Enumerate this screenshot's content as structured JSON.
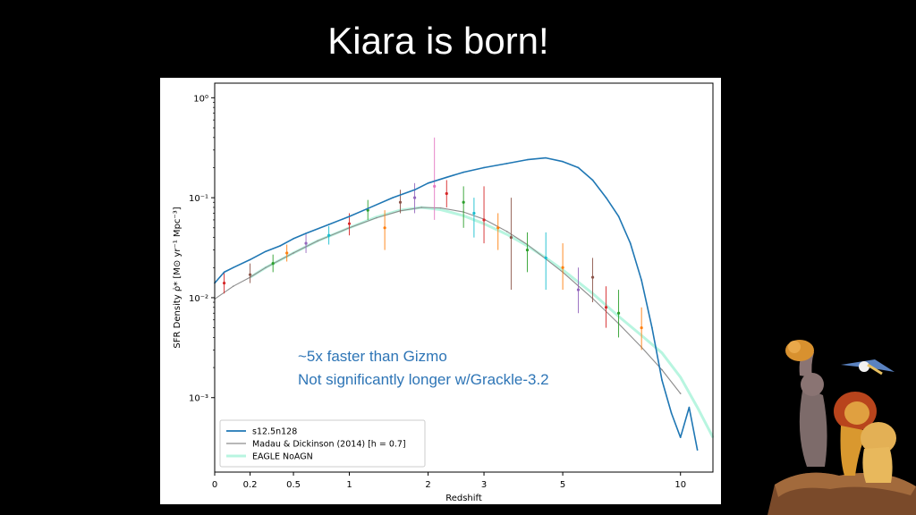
{
  "slide": {
    "title": "Kiara is born!"
  },
  "annotation": {
    "line1": "~5x faster than Gizmo",
    "line2": "Not significantly longer w/Grackle-3.2"
  },
  "colors": {
    "sim": "#1f77b4",
    "madau": "#8c8c8c",
    "eagle": "#b8f5e0",
    "annotation": "#2e75b6"
  },
  "chart_data": {
    "type": "line",
    "xlabel": "Redshift",
    "ylabel": "SFR Density ρ̇* [M⊙ yr⁻¹ Mpc⁻³]",
    "x_scale": "log(1+z)",
    "y_scale": "log",
    "xlim": [
      0,
      12
    ],
    "ylim": [
      0.00018,
      1.4
    ],
    "x_ticks": [
      0,
      0.2,
      0.5,
      1,
      2,
      3,
      5,
      10
    ],
    "x_tick_labels": [
      "0",
      "0.2",
      "0.5",
      "1",
      "2",
      "3",
      "5",
      "10"
    ],
    "y_ticks": [
      0.001,
      0.01,
      0.1,
      1
    ],
    "y_tick_labels": [
      "10⁻³",
      "10⁻²",
      "10⁻¹",
      "10⁰"
    ],
    "legend_position": "bottom-left",
    "series": [
      {
        "name": "s12.5n128",
        "color": "#1f77b4",
        "x": [
          0,
          0.05,
          0.1,
          0.2,
          0.3,
          0.4,
          0.5,
          0.6,
          0.8,
          1.0,
          1.2,
          1.5,
          1.8,
          2.0,
          2.3,
          2.6,
          3.0,
          3.5,
          4.0,
          4.5,
          5.0,
          5.5,
          6.0,
          6.5,
          7.0,
          7.5,
          8.0,
          8.5,
          9.0,
          9.5,
          10.0,
          10.5,
          11.0
        ],
        "y": [
          0.014,
          0.018,
          0.02,
          0.024,
          0.029,
          0.033,
          0.039,
          0.044,
          0.054,
          0.065,
          0.078,
          0.1,
          0.12,
          0.14,
          0.16,
          0.18,
          0.2,
          0.22,
          0.24,
          0.25,
          0.23,
          0.2,
          0.15,
          0.1,
          0.065,
          0.035,
          0.015,
          0.005,
          0.0015,
          0.0007,
          0.0004,
          0.0008,
          0.0003
        ]
      },
      {
        "name": "Madau & Dickinson (2014) [h = 0.7]",
        "color": "#8c8c8c",
        "x": [
          0,
          0.1,
          0.2,
          0.3,
          0.5,
          0.7,
          1.0,
          1.3,
          1.6,
          1.9,
          2.2,
          2.6,
          3.0,
          3.5,
          4.0,
          5.0,
          6.0,
          7.0,
          8.0,
          9.0,
          10.0
        ],
        "y": [
          0.0097,
          0.013,
          0.016,
          0.02,
          0.028,
          0.037,
          0.05,
          0.063,
          0.074,
          0.08,
          0.079,
          0.072,
          0.061,
          0.046,
          0.034,
          0.018,
          0.0098,
          0.0055,
          0.0032,
          0.0019,
          0.0011
        ]
      },
      {
        "name": "EAGLE NoAGN",
        "color": "#b8f5e0",
        "x": [
          0.2,
          0.3,
          0.5,
          0.7,
          1.0,
          1.3,
          1.6,
          1.9,
          2.2,
          2.6,
          3.0,
          3.5,
          4.0,
          4.5,
          5.0,
          6.0,
          7.0,
          8.0,
          9.0,
          10.0,
          11.0,
          12.0
        ],
        "y": [
          0.016,
          0.02,
          0.028,
          0.037,
          0.05,
          0.064,
          0.075,
          0.08,
          0.076,
          0.066,
          0.055,
          0.043,
          0.033,
          0.025,
          0.019,
          0.011,
          0.0065,
          0.0042,
          0.0028,
          0.0016,
          0.0008,
          0.0004
        ]
      }
    ],
    "observations": {
      "name": "observational data points",
      "points": [
        {
          "x": 0.05,
          "y": 0.014,
          "lo": 0.011,
          "hi": 0.018,
          "color": "#d62728"
        },
        {
          "x": 0.2,
          "y": 0.017,
          "lo": 0.014,
          "hi": 0.022,
          "color": "#8c564b"
        },
        {
          "x": 0.35,
          "y": 0.022,
          "lo": 0.018,
          "hi": 0.027,
          "color": "#2ca02c"
        },
        {
          "x": 0.45,
          "y": 0.028,
          "lo": 0.023,
          "hi": 0.034,
          "color": "#ff7f0e"
        },
        {
          "x": 0.6,
          "y": 0.035,
          "lo": 0.028,
          "hi": 0.043,
          "color": "#9467bd"
        },
        {
          "x": 0.8,
          "y": 0.042,
          "lo": 0.034,
          "hi": 0.052,
          "color": "#17becf"
        },
        {
          "x": 1.0,
          "y": 0.055,
          "lo": 0.042,
          "hi": 0.07,
          "color": "#d62728"
        },
        {
          "x": 1.2,
          "y": 0.075,
          "lo": 0.06,
          "hi": 0.095,
          "color": "#2ca02c"
        },
        {
          "x": 1.4,
          "y": 0.05,
          "lo": 0.03,
          "hi": 0.075,
          "color": "#ff7f0e"
        },
        {
          "x": 1.6,
          "y": 0.09,
          "lo": 0.07,
          "hi": 0.12,
          "color": "#8c564b"
        },
        {
          "x": 1.8,
          "y": 0.1,
          "lo": 0.07,
          "hi": 0.14,
          "color": "#9467bd"
        },
        {
          "x": 2.1,
          "y": 0.13,
          "lo": 0.06,
          "hi": 0.4,
          "color": "#e377c2"
        },
        {
          "x": 2.3,
          "y": 0.11,
          "lo": 0.08,
          "hi": 0.15,
          "color": "#d62728"
        },
        {
          "x": 2.6,
          "y": 0.09,
          "lo": 0.05,
          "hi": 0.13,
          "color": "#2ca02c"
        },
        {
          "x": 2.8,
          "y": 0.07,
          "lo": 0.04,
          "hi": 0.1,
          "color": "#17becf"
        },
        {
          "x": 3.0,
          "y": 0.06,
          "lo": 0.035,
          "hi": 0.13,
          "color": "#d62728"
        },
        {
          "x": 3.3,
          "y": 0.05,
          "lo": 0.03,
          "hi": 0.07,
          "color": "#ff7f0e"
        },
        {
          "x": 3.6,
          "y": 0.04,
          "lo": 0.012,
          "hi": 0.1,
          "color": "#8c564b"
        },
        {
          "x": 4.0,
          "y": 0.03,
          "lo": 0.018,
          "hi": 0.045,
          "color": "#2ca02c"
        },
        {
          "x": 4.5,
          "y": 0.025,
          "lo": 0.012,
          "hi": 0.045,
          "color": "#17becf"
        },
        {
          "x": 5.0,
          "y": 0.02,
          "lo": 0.012,
          "hi": 0.035,
          "color": "#ff7f0e"
        },
        {
          "x": 5.5,
          "y": 0.012,
          "lo": 0.007,
          "hi": 0.02,
          "color": "#9467bd"
        },
        {
          "x": 6.0,
          "y": 0.016,
          "lo": 0.009,
          "hi": 0.025,
          "color": "#8c564b"
        },
        {
          "x": 6.5,
          "y": 0.008,
          "lo": 0.005,
          "hi": 0.013,
          "color": "#d62728"
        },
        {
          "x": 7.0,
          "y": 0.007,
          "lo": 0.004,
          "hi": 0.012,
          "color": "#2ca02c"
        },
        {
          "x": 8.0,
          "y": 0.005,
          "lo": 0.003,
          "hi": 0.008,
          "color": "#ff7f0e"
        }
      ]
    }
  }
}
